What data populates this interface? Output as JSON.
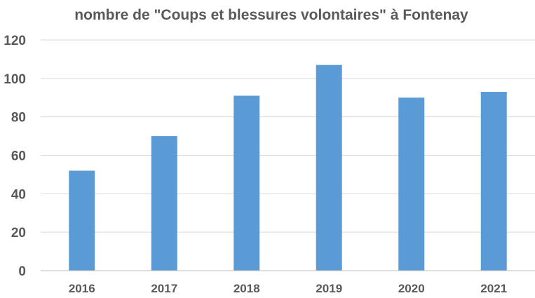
{
  "chart_data": {
    "type": "bar",
    "title": "nombre de \"Coups et blessures volontaires\" à Fontenay",
    "xlabel": "",
    "ylabel": "",
    "categories": [
      "2016",
      "2017",
      "2018",
      "2019",
      "2020",
      "2021"
    ],
    "values": [
      52,
      70,
      91,
      107,
      90,
      93
    ],
    "ylim": [
      0,
      120
    ],
    "yticks": [
      0,
      20,
      40,
      60,
      80,
      100,
      120
    ],
    "grid": true,
    "legend": "none",
    "colors": {
      "bar": "#5b9bd5",
      "text": "#595959",
      "grid": "#d9d9d9"
    }
  }
}
